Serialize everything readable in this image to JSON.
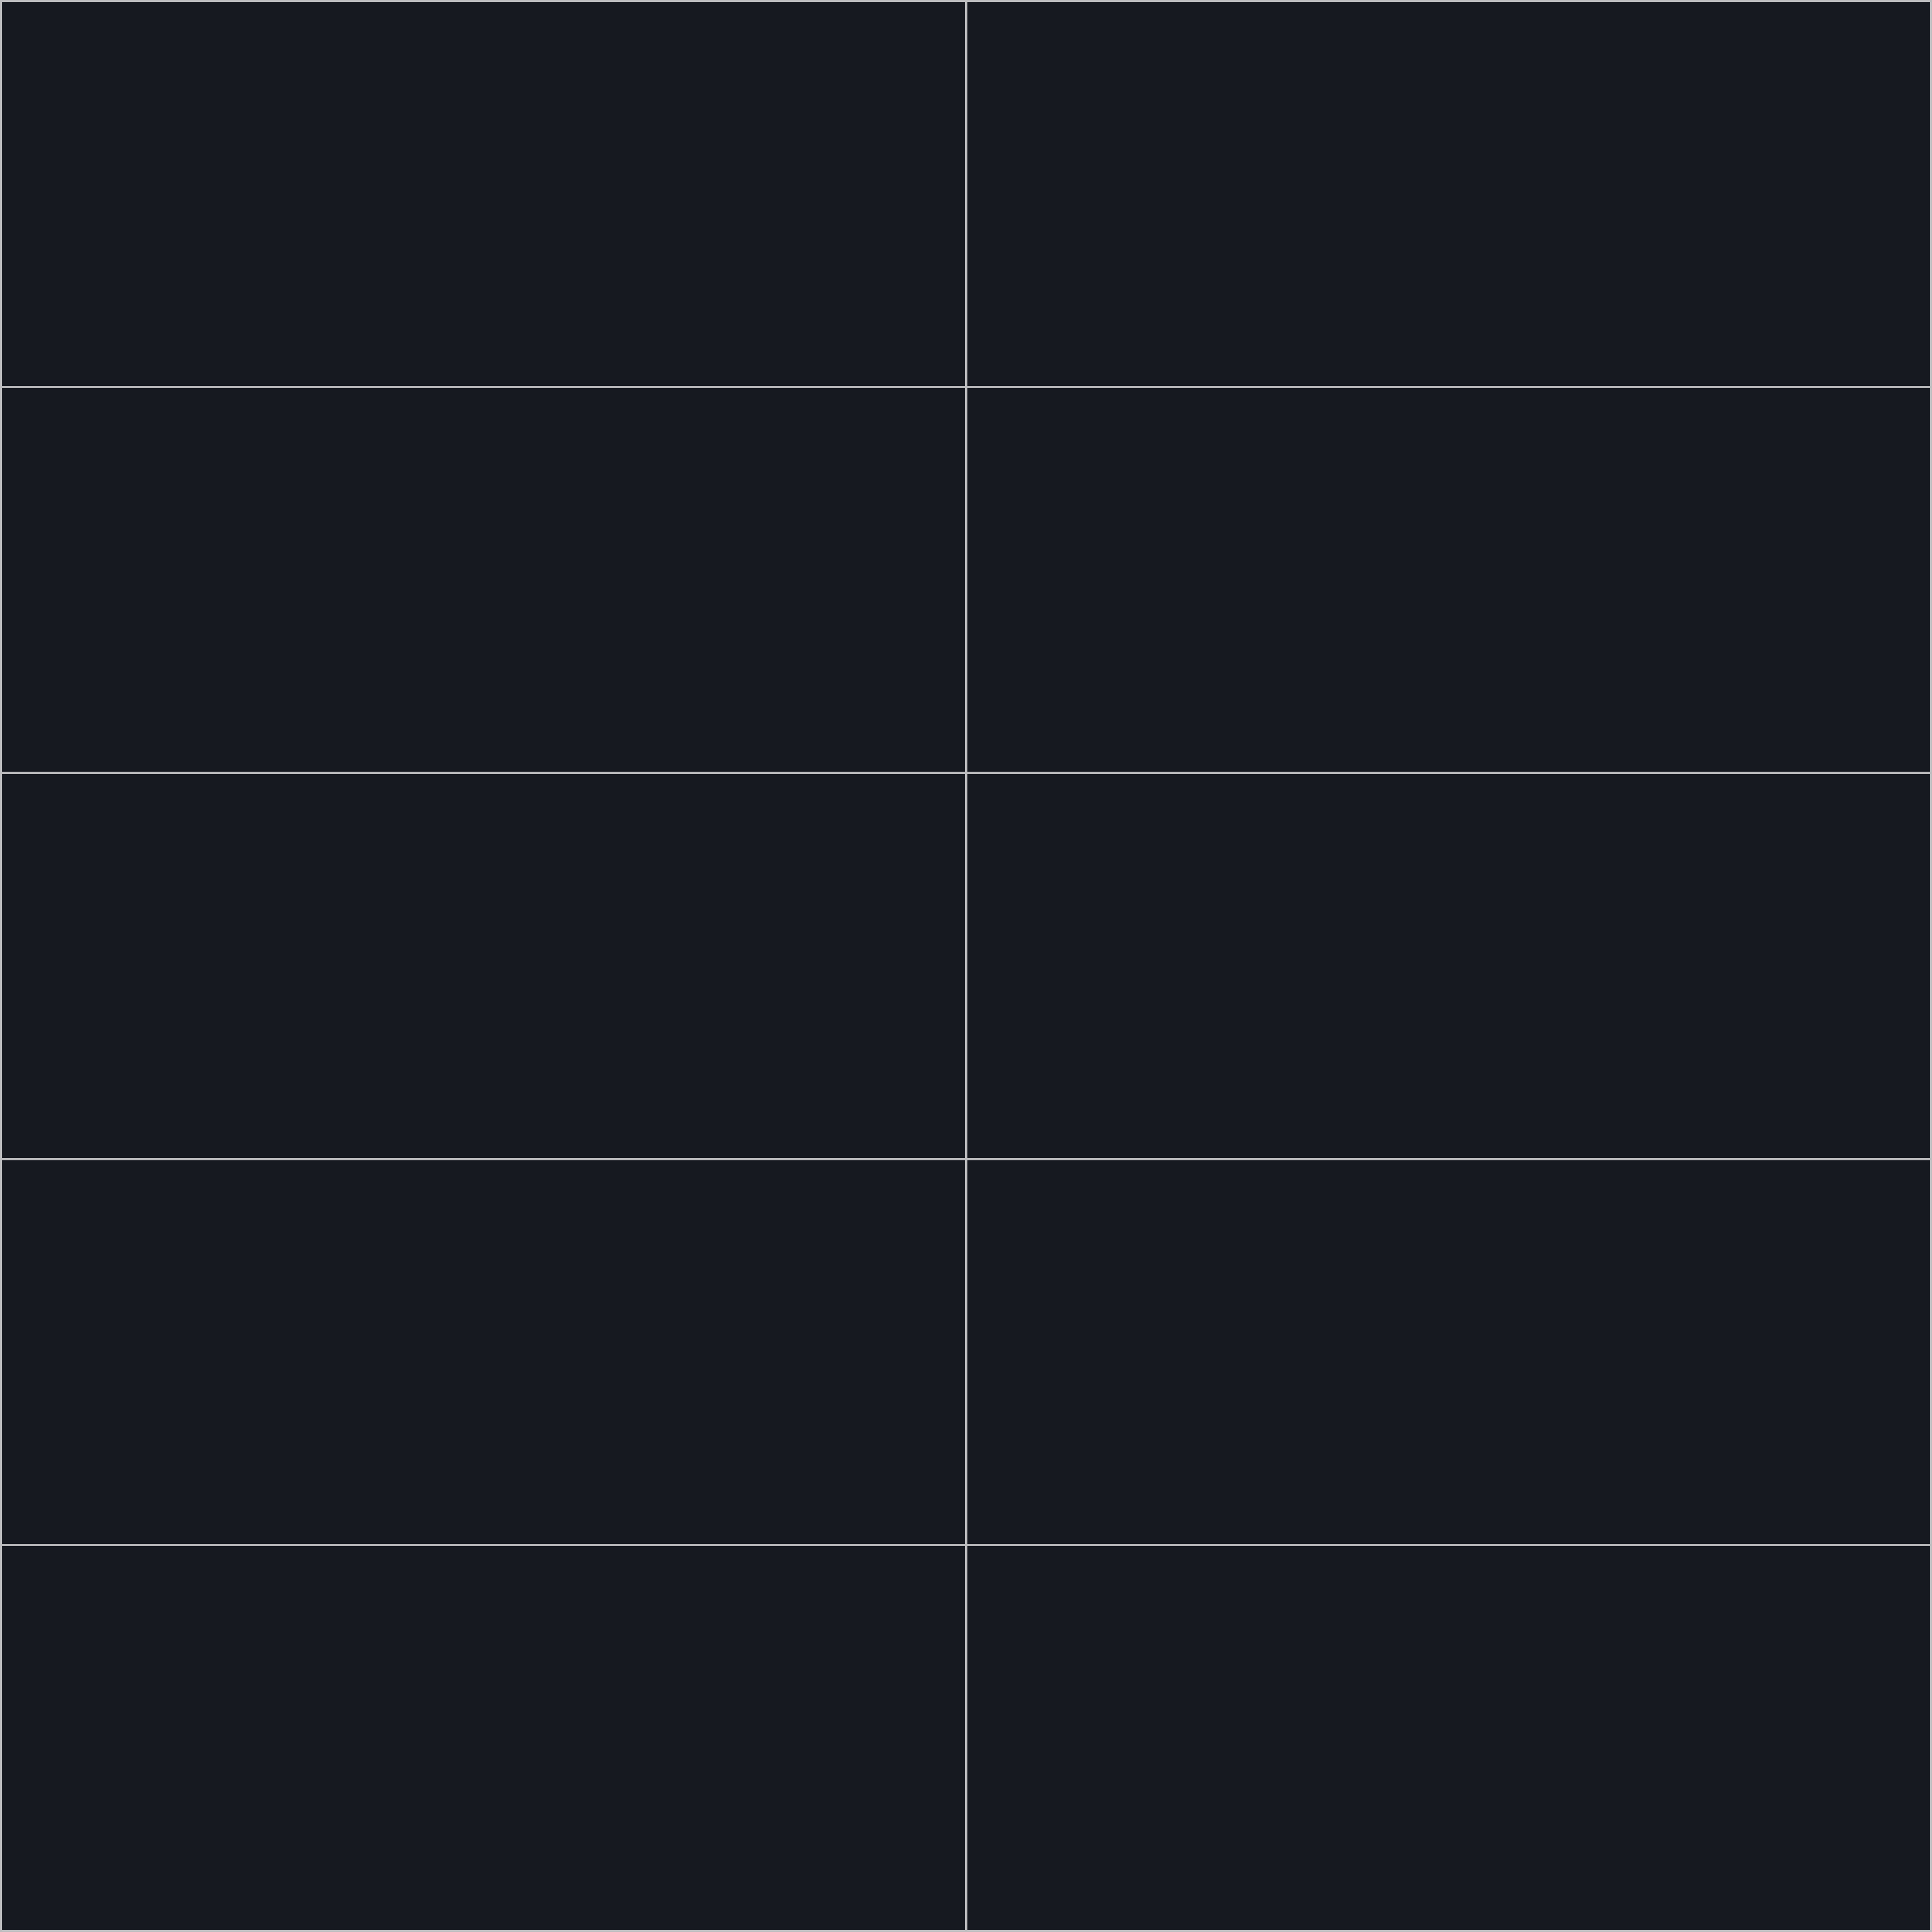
{
  "layout": {
    "rows": 5,
    "columns": 2
  },
  "colors": {
    "panel_background": "#161920",
    "grid_line": "#bdbdbf"
  },
  "panels": [
    {
      "label": ""
    },
    {
      "label": ""
    },
    {
      "label": ""
    },
    {
      "label": ""
    },
    {
      "label": ""
    },
    {
      "label": ""
    },
    {
      "label": ""
    },
    {
      "label": ""
    },
    {
      "label": ""
    },
    {
      "label": ""
    }
  ]
}
